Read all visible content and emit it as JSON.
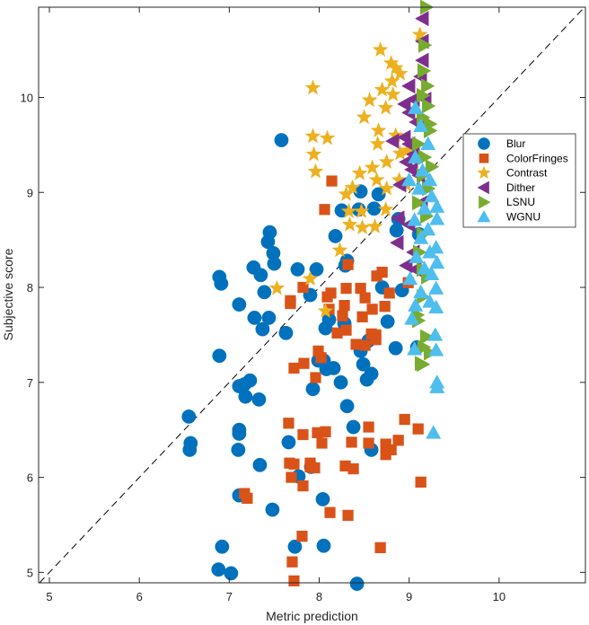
{
  "chart_data": {
    "type": "scatter",
    "title": "",
    "xlabel": "Metric prediction",
    "ylabel": "Subjective score",
    "xlim": [
      4.88,
      10.96
    ],
    "ylim": [
      4.89,
      10.95
    ],
    "xticks": [
      5,
      6,
      7,
      8,
      9,
      10
    ],
    "yticks": [
      5,
      6,
      7,
      8,
      9,
      10
    ],
    "xtick_labels": [
      "5",
      "6",
      "7",
      "8",
      "9",
      "10"
    ],
    "ytick_labels": [
      "5",
      "6",
      "7",
      "8",
      "9",
      "10"
    ],
    "grid": false,
    "legend_position": "right",
    "reference_line": {
      "type": "identity",
      "style": "dashed",
      "color": "#000000"
    },
    "series": [
      {
        "name": "Blur",
        "marker": "circle",
        "color": "#0072BD",
        "points": [
          [
            7.58,
            9.55
          ],
          [
            6.89,
            8.11
          ],
          [
            6.91,
            8.04
          ],
          [
            6.89,
            7.28
          ],
          [
            7.11,
            7.82
          ],
          [
            7.27,
            8.21
          ],
          [
            7.35,
            8.13
          ],
          [
            7.45,
            8.58
          ],
          [
            7.43,
            8.48
          ],
          [
            7.49,
            8.36
          ],
          [
            7.5,
            8.25
          ],
          [
            7.39,
            7.95
          ],
          [
            7.28,
            7.68
          ],
          [
            7.44,
            7.68
          ],
          [
            7.37,
            7.56
          ],
          [
            7.76,
            8.19
          ],
          [
            7.97,
            8.19
          ],
          [
            7.9,
            7.92
          ],
          [
            7.63,
            7.52
          ],
          [
            6.55,
            6.64
          ],
          [
            6.57,
            6.36
          ],
          [
            6.56,
            6.29
          ],
          [
            7.11,
            6.96
          ],
          [
            7.17,
            6.98
          ],
          [
            7.23,
            7.02
          ],
          [
            7.18,
            6.85
          ],
          [
            7.33,
            6.82
          ],
          [
            7.11,
            6.5
          ],
          [
            7.11,
            6.46
          ],
          [
            7.1,
            6.29
          ],
          [
            7.34,
            6.13
          ],
          [
            7.11,
            5.81
          ],
          [
            7.48,
            5.66
          ],
          [
            6.88,
            5.03
          ],
          [
            6.92,
            5.27
          ],
          [
            7.02,
            4.99
          ],
          [
            7.73,
            5.27
          ],
          [
            8.05,
            5.28
          ],
          [
            8.42,
            4.88
          ],
          [
            7.66,
            6.37
          ],
          [
            7.77,
            6.01
          ],
          [
            7.91,
            6.11
          ],
          [
            8.04,
            5.77
          ],
          [
            7.93,
            6.93
          ],
          [
            7.99,
            7.23
          ],
          [
            8.05,
            7.23
          ],
          [
            8.08,
            7.14
          ],
          [
            8.24,
            7.0
          ],
          [
            8.31,
            6.75
          ],
          [
            8.38,
            6.53
          ],
          [
            8.58,
            6.29
          ],
          [
            8.16,
            7.15
          ],
          [
            8.11,
            7.66
          ],
          [
            8.07,
            7.57
          ],
          [
            8.28,
            7.62
          ],
          [
            8.31,
            8.28
          ],
          [
            8.29,
            8.23
          ],
          [
            8.18,
            8.54
          ],
          [
            8.25,
            8.81
          ],
          [
            8.44,
            8.82
          ],
          [
            8.46,
            9.01
          ],
          [
            8.66,
            8.98
          ],
          [
            8.61,
            8.83
          ],
          [
            8.88,
            8.72
          ],
          [
            8.86,
            8.6
          ],
          [
            8.7,
            8.0
          ],
          [
            8.76,
            7.64
          ],
          [
            8.92,
            7.97
          ],
          [
            8.85,
            7.36
          ],
          [
            8.53,
            7.03
          ],
          [
            8.58,
            7.09
          ],
          [
            8.46,
            7.33
          ],
          [
            8.49,
            7.19
          ],
          [
            9.09,
            7.37
          ],
          [
            9.11,
            8.56
          ],
          [
            8.55,
            7.44
          ]
        ]
      },
      {
        "name": "ColorFringes",
        "marker": "square",
        "color": "#D95319",
        "points": [
          [
            8.14,
            9.12
          ],
          [
            8.06,
            8.82
          ],
          [
            7.68,
            7.86
          ],
          [
            7.68,
            7.83
          ],
          [
            7.82,
            8.0
          ],
          [
            8.09,
            7.9
          ],
          [
            8.13,
            7.94
          ],
          [
            8.11,
            7.77
          ],
          [
            8.26,
            7.7
          ],
          [
            8.28,
            7.81
          ],
          [
            8.3,
            7.99
          ],
          [
            8.32,
            8.24
          ],
          [
            8.59,
            7.77
          ],
          [
            8.46,
            7.99
          ],
          [
            8.51,
            7.89
          ],
          [
            8.48,
            7.69
          ],
          [
            8.64,
            8.12
          ],
          [
            8.7,
            8.16
          ],
          [
            8.78,
            7.94
          ],
          [
            8.73,
            7.8
          ],
          [
            8.63,
            7.5
          ],
          [
            8.2,
            7.52
          ],
          [
            8.3,
            7.55
          ],
          [
            8.41,
            7.4
          ],
          [
            8.51,
            7.39
          ],
          [
            8.58,
            7.51
          ],
          [
            8.63,
            7.45
          ],
          [
            7.72,
            7.15
          ],
          [
            7.83,
            7.2
          ],
          [
            7.66,
            6.57
          ],
          [
            7.96,
            7.05
          ],
          [
            7.99,
            7.33
          ],
          [
            8.02,
            7.26
          ],
          [
            7.82,
            6.45
          ],
          [
            7.98,
            6.47
          ],
          [
            8.07,
            6.48
          ],
          [
            8.03,
            6.36
          ],
          [
            8.36,
            6.37
          ],
          [
            8.55,
            6.53
          ],
          [
            8.55,
            6.36
          ],
          [
            8.74,
            6.35
          ],
          [
            8.74,
            6.24
          ],
          [
            8.8,
            6.29
          ],
          [
            8.88,
            6.39
          ],
          [
            8.95,
            6.61
          ],
          [
            9.13,
            5.95
          ],
          [
            7.67,
            6.15
          ],
          [
            7.72,
            6.14
          ],
          [
            7.69,
            6.0
          ],
          [
            7.82,
            5.91
          ],
          [
            7.9,
            6.11
          ],
          [
            7.9,
            6.15
          ],
          [
            7.95,
            6.1
          ],
          [
            7.17,
            5.83
          ],
          [
            7.2,
            5.78
          ],
          [
            8.12,
            5.63
          ],
          [
            8.32,
            5.6
          ],
          [
            8.29,
            6.12
          ],
          [
            8.38,
            6.09
          ],
          [
            8.68,
            5.26
          ],
          [
            7.7,
            5.11
          ],
          [
            7.81,
            5.38
          ],
          [
            7.72,
            4.91
          ],
          [
            9.1,
            6.51
          ],
          [
            8.99,
            8.05
          ]
        ]
      },
      {
        "name": "Contrast",
        "marker": "star",
        "color": "#EDB120",
        "points": [
          [
            7.93,
            10.1
          ],
          [
            7.93,
            9.59
          ],
          [
            8.09,
            9.57
          ],
          [
            7.94,
            9.4
          ],
          [
            7.96,
            9.22
          ],
          [
            8.23,
            8.39
          ],
          [
            7.9,
            8.09
          ],
          [
            8.07,
            7.75
          ],
          [
            7.53,
            7.99
          ],
          [
            8.5,
            9.79
          ],
          [
            8.68,
            10.5
          ],
          [
            8.8,
            10.36
          ],
          [
            8.85,
            10.31
          ],
          [
            8.7,
            10.08
          ],
          [
            8.82,
            10.03
          ],
          [
            8.74,
            9.89
          ],
          [
            8.56,
            9.97
          ],
          [
            8.81,
            10.17
          ],
          [
            8.9,
            10.25
          ],
          [
            8.65,
            9.51
          ],
          [
            8.66,
            9.65
          ],
          [
            8.75,
            9.32
          ],
          [
            8.85,
            9.6
          ],
          [
            8.9,
            9.41
          ],
          [
            8.98,
            9.44
          ],
          [
            8.59,
            9.26
          ],
          [
            8.45,
            9.2
          ],
          [
            8.37,
            9.05
          ],
          [
            8.3,
            8.98
          ],
          [
            8.64,
            9.13
          ],
          [
            8.75,
            9.04
          ],
          [
            8.33,
            8.8
          ],
          [
            8.34,
            8.66
          ],
          [
            8.48,
            8.63
          ],
          [
            8.62,
            8.64
          ],
          [
            8.74,
            8.82
          ],
          [
            8.47,
            8.8
          ],
          [
            9.12,
            10.66
          ],
          [
            8.97,
            9.08
          ],
          [
            8.89,
            9.13
          ]
        ]
      },
      {
        "name": "Dither",
        "marker": "triangle-left",
        "color": "#7E2F8E",
        "points": [
          [
            9.15,
            10.83
          ],
          [
            9.15,
            10.59
          ],
          [
            9.15,
            10.39
          ],
          [
            9.13,
            10.22
          ],
          [
            9.0,
            10.12
          ],
          [
            9.05,
            9.98
          ],
          [
            8.95,
            9.93
          ],
          [
            9.0,
            9.84
          ],
          [
            9.15,
            9.7
          ],
          [
            9.08,
            9.74
          ],
          [
            8.95,
            9.58
          ],
          [
            8.82,
            9.54
          ],
          [
            9.0,
            9.51
          ],
          [
            9.05,
            9.4
          ],
          [
            8.97,
            9.32
          ],
          [
            8.9,
            9.08
          ],
          [
            9.03,
            9.24
          ],
          [
            8.88,
            8.73
          ],
          [
            9.0,
            8.66
          ],
          [
            8.87,
            8.47
          ],
          [
            9.05,
            8.37
          ],
          [
            8.97,
            8.23
          ],
          [
            9.07,
            8.19
          ],
          [
            9.14,
            8.89
          ],
          [
            9.11,
            9.18
          ],
          [
            9.18,
            9.98
          ]
        ]
      },
      {
        "name": "LSNU",
        "marker": "triangle-right",
        "color": "#77AC30",
        "points": [
          [
            9.19,
            10.95
          ],
          [
            9.17,
            10.55
          ],
          [
            9.16,
            10.28
          ],
          [
            9.2,
            10.12
          ],
          [
            9.15,
            10.02
          ],
          [
            9.21,
            9.91
          ],
          [
            9.15,
            9.79
          ],
          [
            9.23,
            9.65
          ],
          [
            9.1,
            9.51
          ],
          [
            9.17,
            9.37
          ],
          [
            9.25,
            9.27
          ],
          [
            9.15,
            9.18
          ],
          [
            9.21,
            9.04
          ],
          [
            9.1,
            8.89
          ],
          [
            9.19,
            8.75
          ],
          [
            9.15,
            8.56
          ],
          [
            9.11,
            8.37
          ],
          [
            9.15,
            8.19
          ],
          [
            9.2,
            8.11
          ],
          [
            9.15,
            7.9
          ],
          [
            9.09,
            7.71
          ],
          [
            9.1,
            7.65
          ],
          [
            9.19,
            7.48
          ],
          [
            9.16,
            7.37
          ],
          [
            9.23,
            7.31
          ],
          [
            9.15,
            7.19
          ],
          [
            9.13,
            7.2
          ],
          [
            9.23,
            9.72
          ]
        ]
      },
      {
        "name": "WGNU",
        "marker": "triangle-up",
        "color": "#4DBEEE",
        "points": [
          [
            9.07,
            9.89
          ],
          [
            9.13,
            9.7
          ],
          [
            9.21,
            9.51
          ],
          [
            9.07,
            9.37
          ],
          [
            9.15,
            9.23
          ],
          [
            9.23,
            9.13
          ],
          [
            9.0,
            9.13
          ],
          [
            9.11,
            9.04
          ],
          [
            9.25,
            8.96
          ],
          [
            9.31,
            8.85
          ],
          [
            9.17,
            8.83
          ],
          [
            9.06,
            8.71
          ],
          [
            9.31,
            8.72
          ],
          [
            9.21,
            8.61
          ],
          [
            9.13,
            8.52
          ],
          [
            9.3,
            8.42
          ],
          [
            9.23,
            8.37
          ],
          [
            9.08,
            8.32
          ],
          [
            9.31,
            8.26
          ],
          [
            9.17,
            8.2
          ],
          [
            9.01,
            8.09
          ],
          [
            9.25,
            8.14
          ],
          [
            9.3,
            7.99
          ],
          [
            9.13,
            7.95
          ],
          [
            9.23,
            7.85
          ],
          [
            9.07,
            7.81
          ],
          [
            9.3,
            7.79
          ],
          [
            9.03,
            7.67
          ],
          [
            9.29,
            7.5
          ],
          [
            9.06,
            7.35
          ],
          [
            9.3,
            7.34
          ],
          [
            9.31,
            7.0
          ],
          [
            9.31,
            6.95
          ],
          [
            9.27,
            6.47
          ]
        ]
      }
    ]
  }
}
